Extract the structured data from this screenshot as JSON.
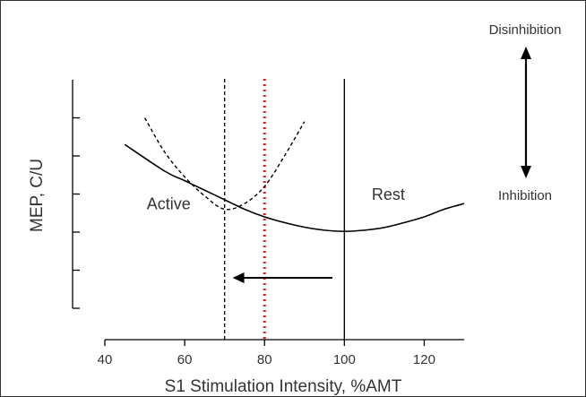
{
  "chart_data": {
    "type": "line",
    "xlabel": "S1 Stimulation Intensity, %AMT",
    "ylabel": "MEP, C/U",
    "xlim": [
      40,
      130
    ],
    "ylim": [
      0,
      6
    ],
    "x_ticks": [
      40,
      60,
      80,
      100,
      120
    ],
    "y_ticks": [
      0,
      1,
      2,
      3,
      4,
      5
    ],
    "y_tick_labels_shown": false,
    "grid": false,
    "legend": "none",
    "series": [
      {
        "name": "Rest",
        "style": "solid",
        "color": "#000000",
        "x": [
          45,
          55,
          60,
          65,
          70,
          75,
          80,
          85,
          90,
          95,
          100,
          105,
          110,
          115,
          120,
          125,
          130
        ],
        "y": [
          4.3,
          3.6,
          3.35,
          3.1,
          2.85,
          2.6,
          2.4,
          2.25,
          2.13,
          2.05,
          2.02,
          2.05,
          2.12,
          2.25,
          2.4,
          2.6,
          2.75
        ]
      },
      {
        "name": "Active",
        "style": "dashed",
        "color": "#000000",
        "x": [
          50,
          55,
          60,
          65,
          70,
          75,
          80,
          85,
          90
        ],
        "y": [
          5.0,
          4.1,
          3.45,
          2.95,
          2.6,
          2.75,
          3.2,
          4.0,
          4.9
        ]
      }
    ],
    "reference_lines": [
      {
        "x": 70,
        "style": "dashed",
        "color": "#000000"
      },
      {
        "x": 80,
        "style": "dotted",
        "color": "#e31a1c"
      },
      {
        "x": 100,
        "style": "solid",
        "color": "#000000"
      }
    ],
    "arrow": {
      "x_from": 97,
      "x_to": 72,
      "y": 0.8
    },
    "annotations": [
      {
        "text": "Active",
        "x": 56,
        "y": 2.6
      },
      {
        "text": "Rest",
        "x": 111,
        "y": 2.85
      }
    ],
    "side_labels": {
      "top": "Disinhibition",
      "bottom": "Inhibition"
    }
  }
}
